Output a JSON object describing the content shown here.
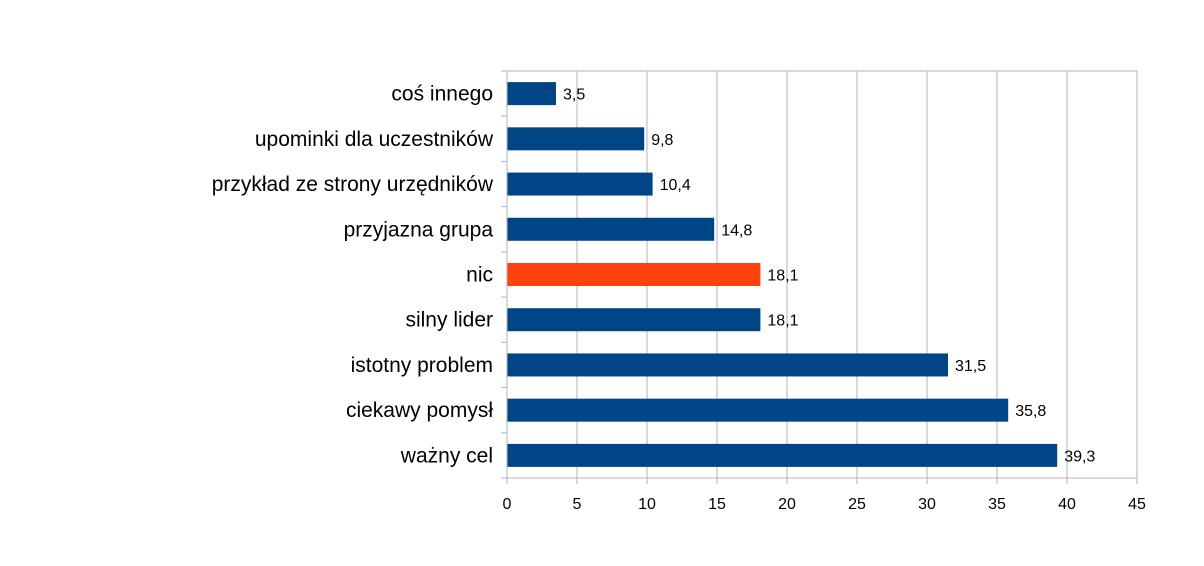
{
  "chart_data": {
    "type": "bar",
    "orientation": "horizontal",
    "categories": [
      "coś innego",
      "upominki dla uczestników",
      "przykład ze strony urzędników",
      "przyjazna grupa",
      "nic",
      "silny lider",
      "istotny problem",
      "ciekawy pomysł",
      "ważny cel"
    ],
    "values": [
      3.5,
      9.8,
      10.4,
      14.8,
      18.1,
      18.1,
      31.5,
      35.8,
      39.3
    ],
    "value_labels": [
      "3,5",
      "9,8",
      "10,4",
      "14,8",
      "18,1",
      "18,1",
      "31,5",
      "35,8",
      "39,3"
    ],
    "highlight_category": "nic",
    "colors": {
      "bar": "#004586",
      "highlight": "#ff420e",
      "grid": "#b3b3b3"
    },
    "xlim": [
      0,
      45
    ],
    "x_ticks": [
      0,
      5,
      10,
      15,
      20,
      25,
      30,
      35,
      40,
      45
    ],
    "grid": true,
    "legend": false
  }
}
